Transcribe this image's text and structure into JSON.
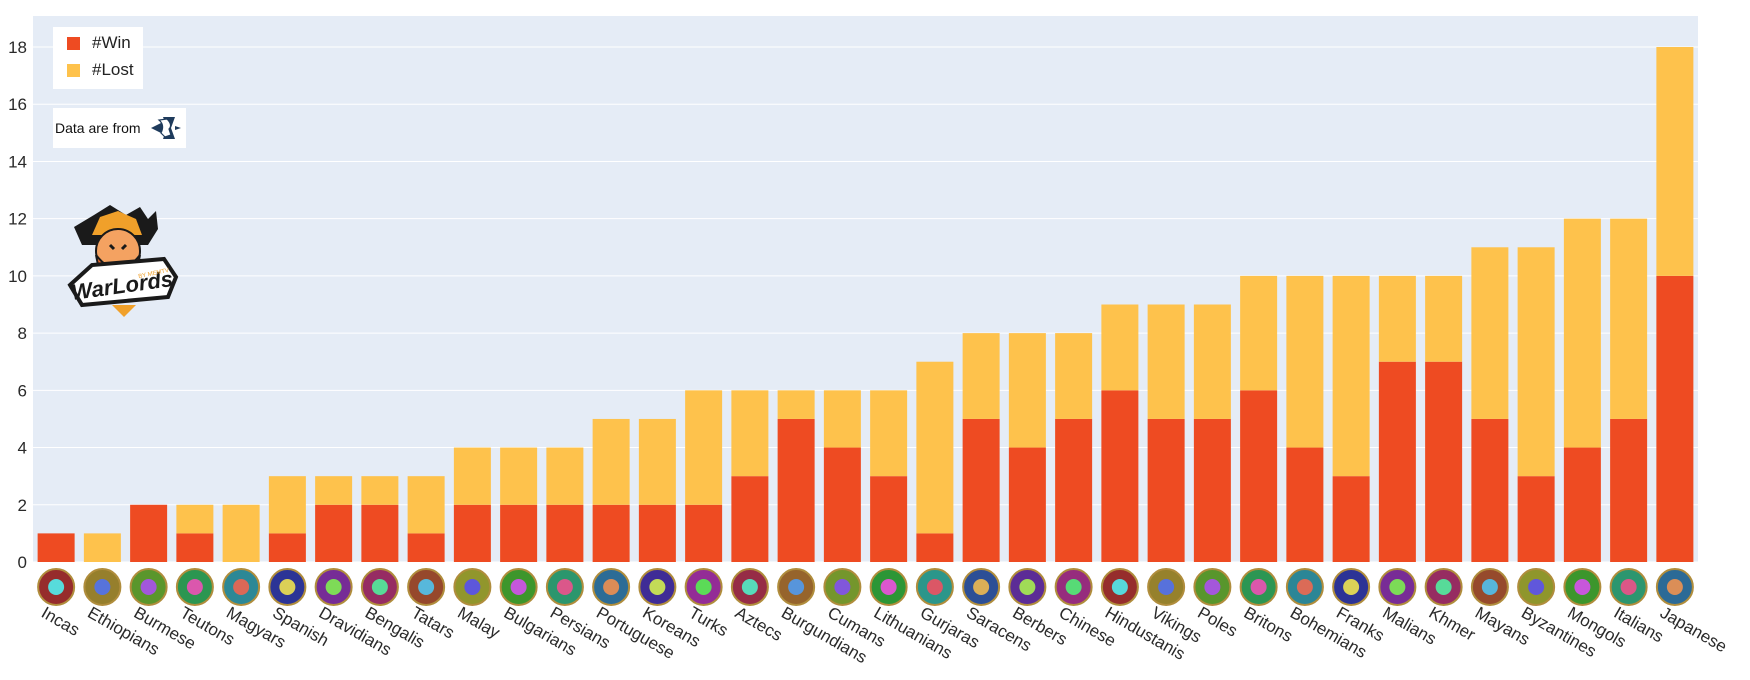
{
  "chart_data": {
    "type": "bar",
    "stacked": true,
    "categories": [
      "Incas",
      "Ethiopians",
      "Burmese",
      "Teutons",
      "Magyars",
      "Spanish",
      "Dravidians",
      "Bengalis",
      "Tatars",
      "Malay",
      "Bulgarians",
      "Persians",
      "Portuguese",
      "Koreans",
      "Turks",
      "Aztecs",
      "Burgundians",
      "Cumans",
      "Lithuanians",
      "Gurjaras",
      "Saracens",
      "Berbers",
      "Chinese",
      "Hindustanis",
      "Vikings",
      "Poles",
      "Britons",
      "Bohemians",
      "Franks",
      "Malians",
      "Khmer",
      "Mayans",
      "Byzantines",
      "Mongols",
      "Italians",
      "Japanese"
    ],
    "series": [
      {
        "name": "#Win",
        "color": "#ee4b22",
        "values": [
          1,
          0,
          2,
          1,
          0,
          1,
          2,
          2,
          1,
          2,
          2,
          2,
          2,
          2,
          2,
          3,
          5,
          4,
          3,
          1,
          5,
          4,
          5,
          6,
          5,
          5,
          6,
          4,
          3,
          7,
          7,
          5,
          3,
          4,
          5,
          10
        ]
      },
      {
        "name": "#Lost",
        "color": "#fec24c",
        "values": [
          0,
          1,
          0,
          1,
          2,
          2,
          1,
          1,
          2,
          2,
          2,
          2,
          3,
          3,
          4,
          3,
          1,
          2,
          3,
          6,
          3,
          4,
          3,
          3,
          4,
          4,
          4,
          6,
          7,
          3,
          3,
          6,
          8,
          8,
          7,
          8
        ]
      }
    ],
    "ylim": [
      0,
      18
    ],
    "yticks": [
      0,
      2,
      4,
      6,
      8,
      10,
      12,
      14,
      16,
      18
    ],
    "grid": true,
    "legend_position": "top-left",
    "xlabel": "",
    "ylabel": "",
    "plot_background": "#e5ecf6"
  },
  "legend": {
    "win_label": "#Win",
    "lost_label": "#Lost"
  },
  "source": {
    "text": "Data are from"
  },
  "logo": {
    "text": "WarLords",
    "subtext": "BY MEMTV"
  }
}
